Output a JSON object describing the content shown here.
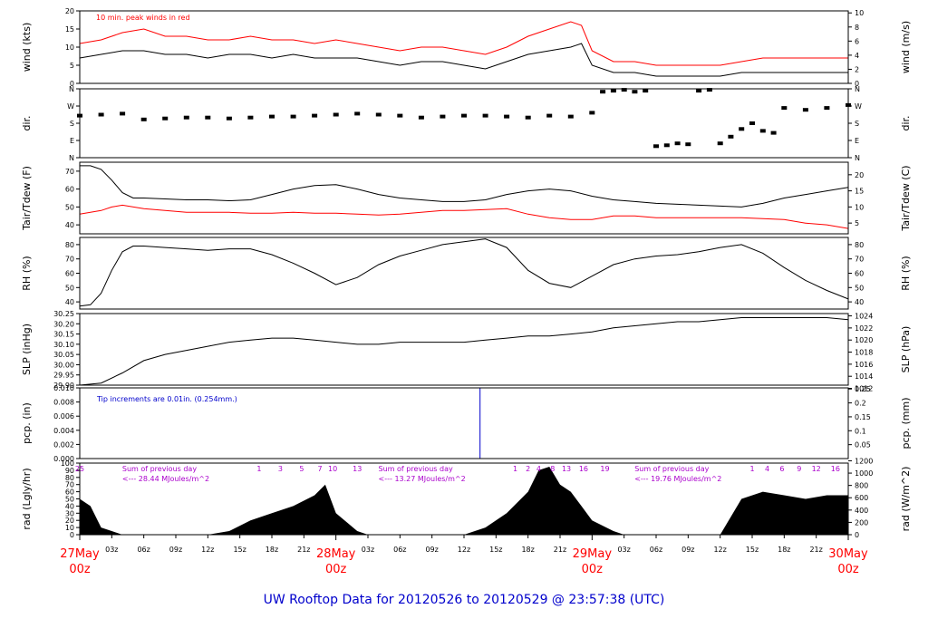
{
  "title": "UW Rooftop Data for 20120526  to  20120529 @ 23:57:38  (UTC)",
  "colors": {
    "red": "#ff0000",
    "blue": "#0000cc",
    "magenta": "#aa00cc",
    "black": "#000000"
  },
  "x_axis": {
    "hours_total": 72,
    "ticks": [
      {
        "h": 3,
        "label": "03z"
      },
      {
        "h": 6,
        "label": "06z"
      },
      {
        "h": 9,
        "label": "09z"
      },
      {
        "h": 12,
        "label": "12z"
      },
      {
        "h": 15,
        "label": "15z"
      },
      {
        "h": 18,
        "label": "18z"
      },
      {
        "h": 21,
        "label": "21z"
      },
      {
        "h": 27,
        "label": "03z"
      },
      {
        "h": 30,
        "label": "06z"
      },
      {
        "h": 33,
        "label": "09z"
      },
      {
        "h": 36,
        "label": "12z"
      },
      {
        "h": 39,
        "label": "15z"
      },
      {
        "h": 42,
        "label": "18z"
      },
      {
        "h": 45,
        "label": "21z"
      },
      {
        "h": 51,
        "label": "03z"
      },
      {
        "h": 54,
        "label": "06z"
      },
      {
        "h": 57,
        "label": "09z"
      },
      {
        "h": 60,
        "label": "12z"
      },
      {
        "h": 63,
        "label": "15z"
      },
      {
        "h": 66,
        "label": "18z"
      },
      {
        "h": 69,
        "label": "21z"
      }
    ],
    "day_labels": [
      {
        "h": 0,
        "date": "27May",
        "time": "00z"
      },
      {
        "h": 24,
        "date": "28May",
        "time": "00z"
      },
      {
        "h": 48,
        "date": "29May",
        "time": "00z"
      },
      {
        "h": 72,
        "date": "30May",
        "time": "00z"
      }
    ]
  },
  "chart_data": [
    {
      "id": "wind",
      "type": "line",
      "ylabel_left": "wind (kts)",
      "ylabel_right": "wind (m/s)",
      "ylim": [
        0,
        20
      ],
      "yticks_left": [
        0,
        5,
        10,
        15,
        20
      ],
      "yticks_right": [
        0,
        2,
        4,
        6,
        8,
        10
      ],
      "annotation": "10 min. peak winds in red",
      "series": [
        {
          "color": "black",
          "x": [
            0,
            2,
            4,
            6,
            8,
            10,
            12,
            14,
            16,
            18,
            20,
            22,
            24,
            26,
            28,
            30,
            32,
            34,
            36,
            38,
            40,
            42,
            44,
            46,
            47,
            48,
            50,
            52,
            54,
            56,
            58,
            60,
            62,
            64,
            66,
            68,
            70,
            72
          ],
          "y": [
            7,
            8,
            9,
            9,
            8,
            8,
            7,
            8,
            8,
            7,
            8,
            7,
            7,
            7,
            6,
            5,
            6,
            6,
            5,
            4,
            6,
            8,
            9,
            10,
            11,
            5,
            3,
            3,
            2,
            2,
            2,
            2,
            3,
            3,
            3,
            3,
            3,
            3
          ]
        },
        {
          "color": "red",
          "x": [
            0,
            2,
            4,
            6,
            8,
            10,
            12,
            14,
            16,
            18,
            20,
            22,
            24,
            26,
            28,
            30,
            32,
            34,
            36,
            38,
            40,
            42,
            44,
            46,
            47,
            48,
            50,
            52,
            54,
            56,
            58,
            60,
            62,
            64,
            66,
            68,
            70,
            72
          ],
          "y": [
            11,
            12,
            14,
            15,
            13,
            13,
            12,
            12,
            13,
            12,
            12,
            11,
            12,
            11,
            10,
            9,
            10,
            10,
            9,
            8,
            10,
            13,
            15,
            17,
            16,
            9,
            6,
            6,
            5,
            5,
            5,
            5,
            6,
            7,
            7,
            7,
            7,
            7
          ]
        }
      ]
    },
    {
      "id": "dir",
      "type": "scatter",
      "ylabel_left": "dir.",
      "ylabel_right": "dir.",
      "ylim": [
        0,
        360
      ],
      "yticks_left": [
        {
          "v": 0,
          "label": "N"
        },
        {
          "v": 90,
          "label": "E"
        },
        {
          "v": 180,
          "label": "S"
        },
        {
          "v": 270,
          "label": "W"
        },
        {
          "v": 360,
          "label": "N"
        }
      ],
      "yticks_right": [
        {
          "v": 0,
          "label": "N"
        },
        {
          "v": 90,
          "label": "E"
        },
        {
          "v": 180,
          "label": "S"
        },
        {
          "v": 270,
          "label": "W"
        },
        {
          "v": 360,
          "label": "N"
        }
      ],
      "series": [
        {
          "color": "black",
          "x": [
            0,
            2,
            4,
            6,
            8,
            10,
            12,
            14,
            16,
            18,
            20,
            22,
            24,
            26,
            28,
            30,
            32,
            34,
            36,
            38,
            40,
            42,
            44,
            46,
            48,
            49,
            50,
            51,
            52,
            53,
            54,
            55,
            56,
            57,
            58,
            59,
            60,
            61,
            62,
            63,
            64,
            65,
            66,
            68,
            70,
            72
          ],
          "y": [
            220,
            225,
            230,
            200,
            205,
            210,
            210,
            205,
            210,
            215,
            215,
            220,
            225,
            230,
            225,
            220,
            210,
            215,
            220,
            220,
            215,
            210,
            220,
            215,
            235,
            345,
            350,
            355,
            345,
            350,
            60,
            65,
            75,
            70,
            350,
            355,
            75,
            110,
            150,
            180,
            140,
            130,
            260,
            250,
            260,
            275
          ]
        }
      ]
    },
    {
      "id": "temp",
      "type": "line",
      "ylabel_left": "Tair/Tdew (F)",
      "ylabel_right": "Tair/Tdew (C)",
      "ylim": [
        35,
        75
      ],
      "yticks_left": [
        40,
        50,
        60,
        70
      ],
      "yticks_right": [
        5,
        10,
        15,
        20
      ],
      "series": [
        {
          "color": "black",
          "x": [
            0,
            1,
            2,
            3,
            4,
            5,
            6,
            8,
            10,
            12,
            14,
            16,
            18,
            20,
            22,
            24,
            26,
            28,
            30,
            32,
            34,
            36,
            38,
            40,
            42,
            44,
            46,
            48,
            50,
            52,
            54,
            56,
            58,
            60,
            62,
            64,
            66,
            68,
            70,
            72
          ],
          "y": [
            73,
            73,
            71,
            65,
            58,
            55,
            55,
            54.5,
            54,
            54,
            53.5,
            54,
            57,
            60,
            62,
            62.5,
            60,
            57,
            55,
            54,
            53,
            53,
            54,
            57,
            59,
            60,
            59,
            56,
            54,
            53,
            52,
            51.5,
            51,
            50.5,
            50,
            52,
            55,
            57,
            59,
            61
          ]
        },
        {
          "color": "red",
          "x": [
            0,
            2,
            3,
            4,
            6,
            8,
            10,
            12,
            14,
            16,
            18,
            20,
            22,
            24,
            26,
            28,
            30,
            32,
            34,
            36,
            38,
            40,
            42,
            44,
            46,
            48,
            50,
            52,
            54,
            56,
            58,
            60,
            62,
            64,
            66,
            68,
            70,
            72
          ],
          "y": [
            46,
            48,
            50,
            51,
            49,
            48,
            47,
            47,
            47,
            46.5,
            46.5,
            47,
            46.5,
            46.5,
            46,
            45.5,
            46,
            47,
            48,
            48,
            48.5,
            49,
            46,
            44,
            43,
            43,
            45,
            45,
            44,
            44,
            44,
            44,
            44,
            43.5,
            43,
            41,
            40,
            38
          ]
        }
      ]
    },
    {
      "id": "rh",
      "type": "line",
      "ylabel_left": "RH (%)",
      "ylabel_right": "RH (%)",
      "ylim": [
        35,
        85
      ],
      "yticks_left": [
        40,
        50,
        60,
        70,
        80
      ],
      "yticks_right": [
        40,
        50,
        60,
        70,
        80
      ],
      "series": [
        {
          "color": "black",
          "x": [
            0,
            1,
            2,
            3,
            4,
            5,
            6,
            8,
            10,
            12,
            14,
            16,
            18,
            20,
            22,
            24,
            26,
            28,
            30,
            32,
            34,
            36,
            38,
            40,
            42,
            44,
            46,
            48,
            50,
            52,
            54,
            56,
            58,
            60,
            62,
            64,
            66,
            68,
            70,
            72
          ],
          "y": [
            37,
            38,
            46,
            62,
            75,
            79,
            79,
            78,
            77,
            76,
            77,
            77,
            73,
            67,
            60,
            52,
            57,
            66,
            72,
            76,
            80,
            82,
            84,
            78,
            62,
            53,
            50,
            58,
            66,
            70,
            72,
            73,
            75,
            78,
            80,
            74,
            64,
            55,
            48,
            42
          ]
        }
      ]
    },
    {
      "id": "slp",
      "type": "line",
      "ylabel_left": "SLP (inHg)",
      "ylabel_right": "SLP (hPa)",
      "ylim": [
        29.9,
        30.25
      ],
      "yticks_left": [
        29.9,
        29.95,
        30.0,
        30.05,
        30.1,
        30.15,
        30.2,
        30.25
      ],
      "yticks_right": [
        {
          "v": 1012,
          "label": "1012"
        },
        {
          "v": 1014,
          "label": "1014"
        },
        {
          "v": 1016,
          "label": "1016"
        },
        {
          "v": 1018,
          "label": "1018"
        },
        {
          "v": 1020,
          "label": "1020"
        },
        {
          "v": 1022,
          "label": "1022"
        },
        {
          "v": 1024,
          "label": "1024"
        }
      ],
      "series": [
        {
          "color": "black",
          "x": [
            0,
            2,
            4,
            6,
            8,
            10,
            12,
            14,
            16,
            18,
            20,
            22,
            24,
            26,
            28,
            30,
            32,
            34,
            36,
            38,
            40,
            42,
            44,
            46,
            48,
            50,
            52,
            54,
            56,
            58,
            60,
            62,
            64,
            66,
            68,
            70,
            72
          ],
          "y": [
            29.9,
            29.91,
            29.96,
            30.02,
            30.05,
            30.07,
            30.09,
            30.11,
            30.12,
            30.13,
            30.13,
            30.12,
            30.11,
            30.1,
            30.1,
            30.11,
            30.11,
            30.11,
            30.11,
            30.12,
            30.13,
            30.14,
            30.14,
            30.15,
            30.16,
            30.18,
            30.19,
            30.2,
            30.21,
            30.21,
            30.22,
            30.23,
            30.23,
            30.23,
            30.23,
            30.23,
            30.22
          ]
        }
      ]
    },
    {
      "id": "pcp",
      "type": "line",
      "ylabel_left": "pcp. (in)",
      "ylabel_right": "pcp. (mm)",
      "ylim": [
        0,
        0.01
      ],
      "yticks_left": [
        "0.000",
        "0.002",
        "0.004",
        "0.006",
        "0.008",
        "0.010"
      ],
      "yticks_right": [
        "0.05",
        "0.1",
        "0.15",
        "0.2",
        "0.25"
      ],
      "annotation": "Tip increments are 0.01in. (0.254mm.)",
      "series": [
        {
          "color": "blue",
          "x": [
            0,
            37.5,
            37.5,
            72
          ],
          "y": [
            0,
            0,
            0.01,
            0.01
          ]
        }
      ]
    },
    {
      "id": "rad",
      "type": "area",
      "ylabel_left": "rad (Lgly/hr)",
      "ylabel_right": "rad (W/m^2)",
      "ylim": [
        0,
        100
      ],
      "yticks_left": [
        0,
        10,
        20,
        30,
        40,
        50,
        60,
        70,
        80,
        90,
        100
      ],
      "yticks_right": [
        {
          "v": 0,
          "label": "0"
        },
        {
          "v": 17.2,
          "label": "200"
        },
        {
          "v": 34.4,
          "label": "400"
        },
        {
          "v": 51.6,
          "label": "600"
        },
        {
          "v": 68.8,
          "label": "800"
        },
        {
          "v": 86.0,
          "label": "1000"
        },
        {
          "v": 103.2,
          "label": "1200"
        }
      ],
      "series": [
        {
          "color": "black",
          "x": [
            0,
            1,
            2,
            3,
            4,
            12,
            14,
            16,
            18,
            20,
            22,
            23,
            24,
            26,
            27,
            36,
            38,
            40,
            42,
            43,
            44,
            45,
            46,
            47,
            48,
            50,
            51,
            60,
            62,
            64,
            66,
            68,
            70,
            72
          ],
          "y": [
            50,
            40,
            10,
            5,
            0,
            0,
            5,
            20,
            30,
            40,
            55,
            70,
            30,
            5,
            0,
            0,
            10,
            30,
            60,
            90,
            95,
            70,
            60,
            40,
            20,
            5,
            0,
            0,
            50,
            60,
            55,
            50,
            55,
            55
          ]
        }
      ],
      "hour_labels": [
        {
          "h": 0,
          "label": "25"
        },
        {
          "h": 16.8,
          "label": "1"
        },
        {
          "h": 18.8,
          "label": "3"
        },
        {
          "h": 20.8,
          "label": "5"
        },
        {
          "h": 22.5,
          "label": "7"
        },
        {
          "h": 23.7,
          "label": "10"
        },
        {
          "h": 26.0,
          "label": "13"
        },
        {
          "h": 40.8,
          "label": "1"
        },
        {
          "h": 42.0,
          "label": "2"
        },
        {
          "h": 43.0,
          "label": "4"
        },
        {
          "h": 44.3,
          "label": "8"
        },
        {
          "h": 45.6,
          "label": "13"
        },
        {
          "h": 47.2,
          "label": "16"
        },
        {
          "h": 49.2,
          "label": "19"
        },
        {
          "h": 63.0,
          "label": "1"
        },
        {
          "h": 64.4,
          "label": "4"
        },
        {
          "h": 65.8,
          "label": "6"
        },
        {
          "h": 67.4,
          "label": "9"
        },
        {
          "h": 69.0,
          "label": "12"
        },
        {
          "h": 70.8,
          "label": "16"
        }
      ],
      "day_sums": [
        {
          "h": 3.3,
          "line1": "Sum of previous day",
          "line2": "<--- 28.44 MJoules/m^2"
        },
        {
          "h": 27.3,
          "line1": "Sum of previous day",
          "line2": "<--- 13.27 MJoules/m^2"
        },
        {
          "h": 51.3,
          "line1": "Sum of previous day",
          "line2": "<--- 19.76 MJoules/m^2"
        }
      ]
    }
  ]
}
